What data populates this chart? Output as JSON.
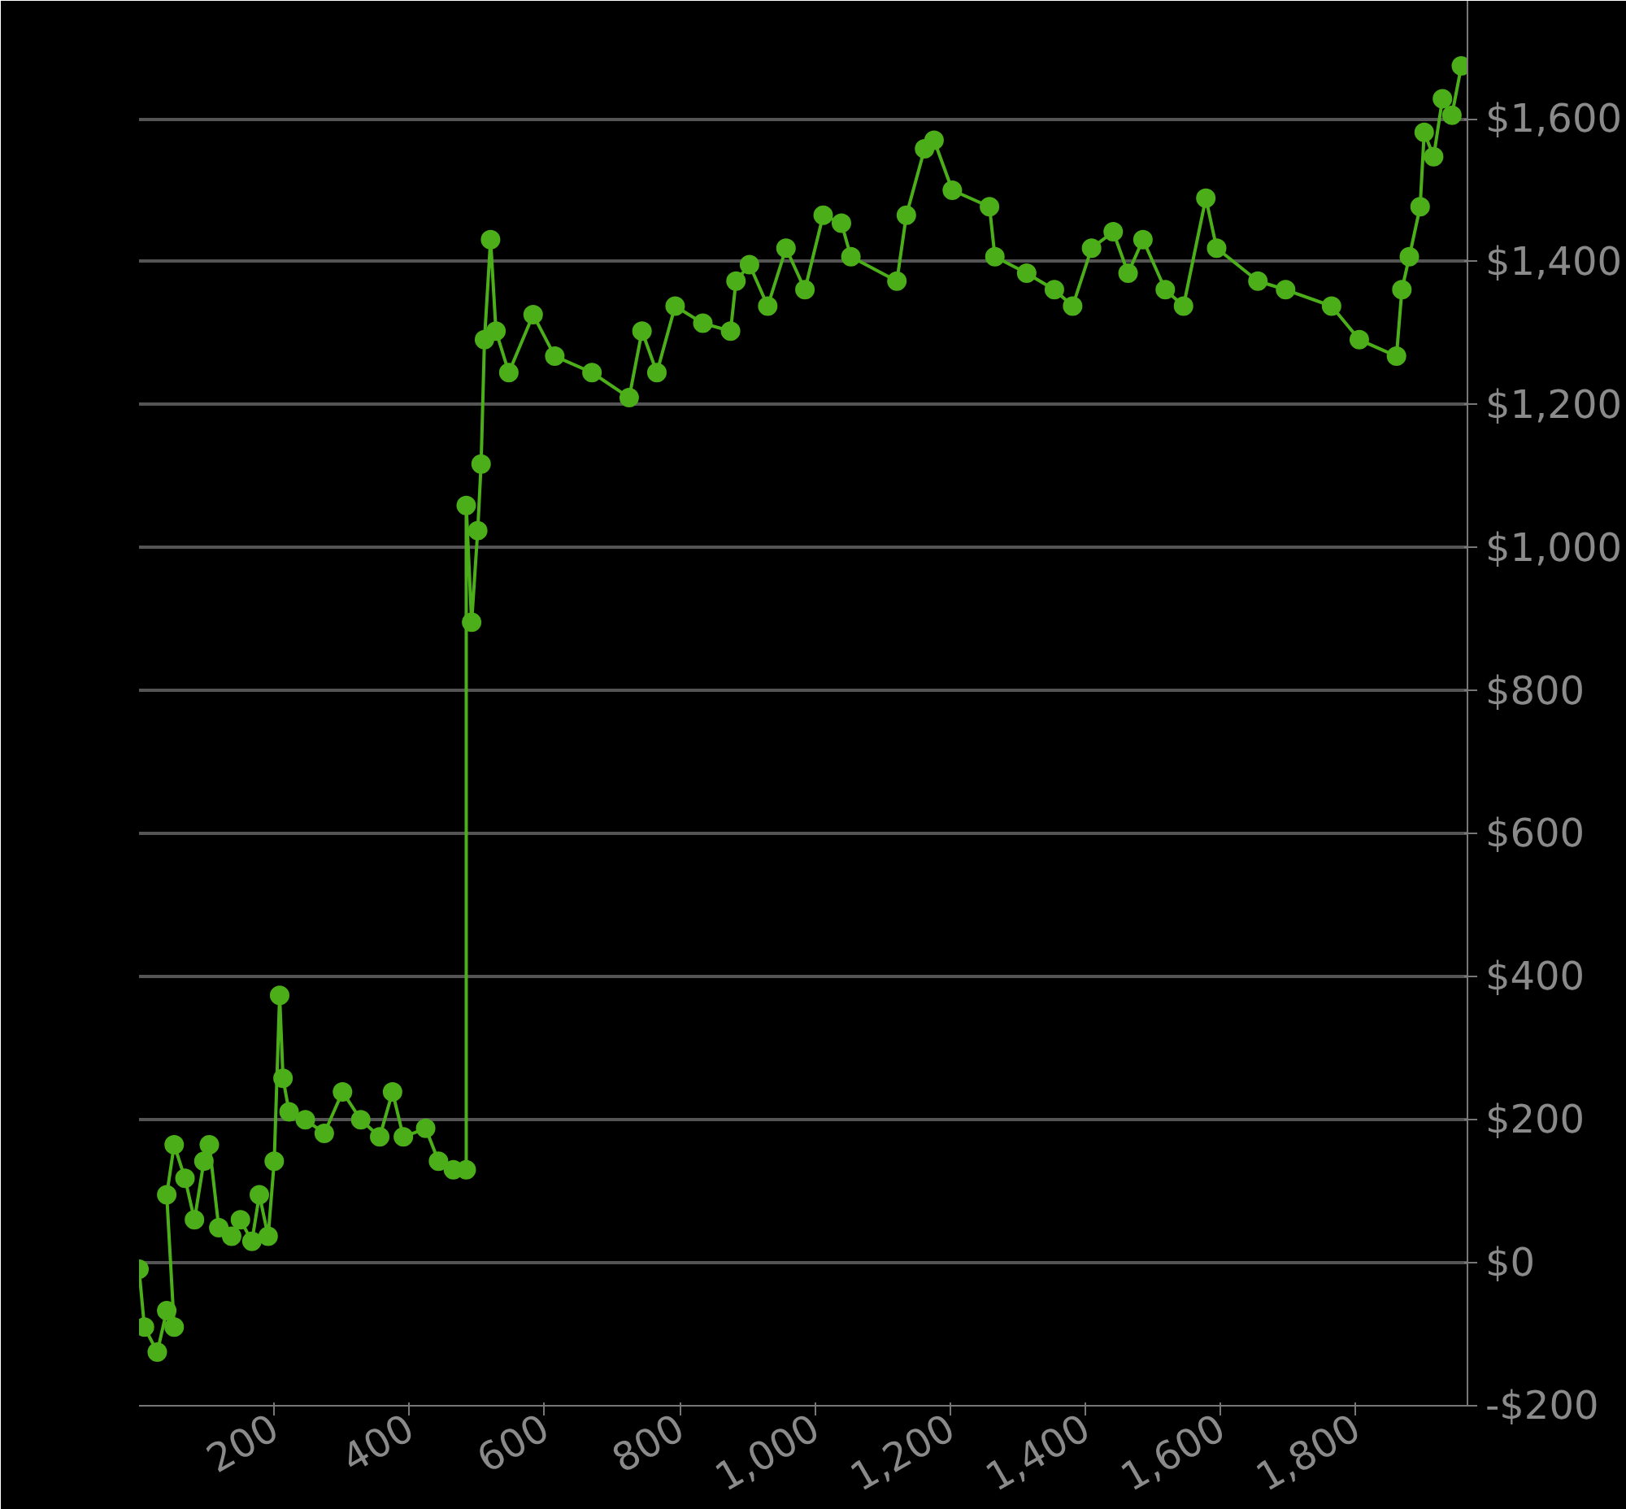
{
  "chart_data": {
    "type": "line",
    "marker": "circle",
    "line_style": "solid",
    "grid": "y",
    "x": [
      0,
      8,
      27,
      41,
      52,
      41,
      52,
      68,
      82,
      96,
      104,
      118,
      137,
      150,
      167,
      178,
      191,
      200,
      208,
      213,
      222,
      246,
      274,
      301,
      328,
      356,
      375,
      391,
      424,
      443,
      465,
      484,
      484,
      492,
      501,
      506,
      511,
      520,
      528,
      547,
      583,
      615,
      670,
      725,
      744,
      766,
      793,
      834,
      875,
      883,
      903,
      930,
      957,
      985,
      1012,
      1039,
      1053,
      1121,
      1135,
      1162,
      1176,
      1203,
      1258,
      1266,
      1313,
      1354,
      1381,
      1409,
      1441,
      1463,
      1485,
      1518,
      1545,
      1578,
      1594,
      1655,
      1696,
      1764,
      1805,
      1860,
      1868,
      1879,
      1895,
      1901,
      1915,
      1928,
      1942,
      1956
    ],
    "series": [
      {
        "color": "#4caf1a",
        "values": [
          -9,
          -90,
          -125,
          -67,
          -90,
          95,
          165,
          118,
          60,
          142,
          165,
          49,
          37,
          60,
          30,
          95,
          37,
          142,
          374,
          258,
          211,
          200,
          181,
          239,
          200,
          176,
          239,
          176,
          188,
          142,
          130,
          130,
          1059,
          896,
          1024,
          1117,
          1291,
          1431,
          1303,
          1245,
          1326,
          1268,
          1245,
          1210,
          1303,
          1245,
          1338,
          1314,
          1303,
          1373,
          1396,
          1338,
          1419,
          1361,
          1465,
          1454,
          1407,
          1373,
          1465,
          1558,
          1570,
          1500,
          1477,
          1407,
          1384,
          1361,
          1338,
          1419,
          1442,
          1384,
          1431,
          1361,
          1338,
          1489,
          1419,
          1373,
          1361,
          1338,
          1291,
          1268,
          1361,
          1407,
          1477,
          1581,
          1547,
          1628,
          1605,
          1674
        ]
      }
    ],
    "xlim": [
      0,
      1965
    ],
    "ylim": [
      -200,
      1765
    ],
    "xticks": [
      {
        "value": 200,
        "label": "200"
      },
      {
        "value": 400,
        "label": "400"
      },
      {
        "value": 600,
        "label": "600"
      },
      {
        "value": 800,
        "label": "800"
      },
      {
        "value": 1000,
        "label": "1,000"
      },
      {
        "value": 1200,
        "label": "1,200"
      },
      {
        "value": 1400,
        "label": "1,400"
      },
      {
        "value": 1600,
        "label": "1,600"
      },
      {
        "value": 1800,
        "label": "1,800"
      }
    ],
    "yticks": [
      {
        "value": -200,
        "label": "-$200"
      },
      {
        "value": 0,
        "label": "$0"
      },
      {
        "value": 200,
        "label": "$200"
      },
      {
        "value": 400,
        "label": "$400"
      },
      {
        "value": 600,
        "label": "$600"
      },
      {
        "value": 800,
        "label": "$800"
      },
      {
        "value": 1000,
        "label": "$1,000"
      },
      {
        "value": 1200,
        "label": "$1,200"
      },
      {
        "value": 1400,
        "label": "$1,400"
      },
      {
        "value": 1600,
        "label": "$1,600"
      }
    ]
  }
}
